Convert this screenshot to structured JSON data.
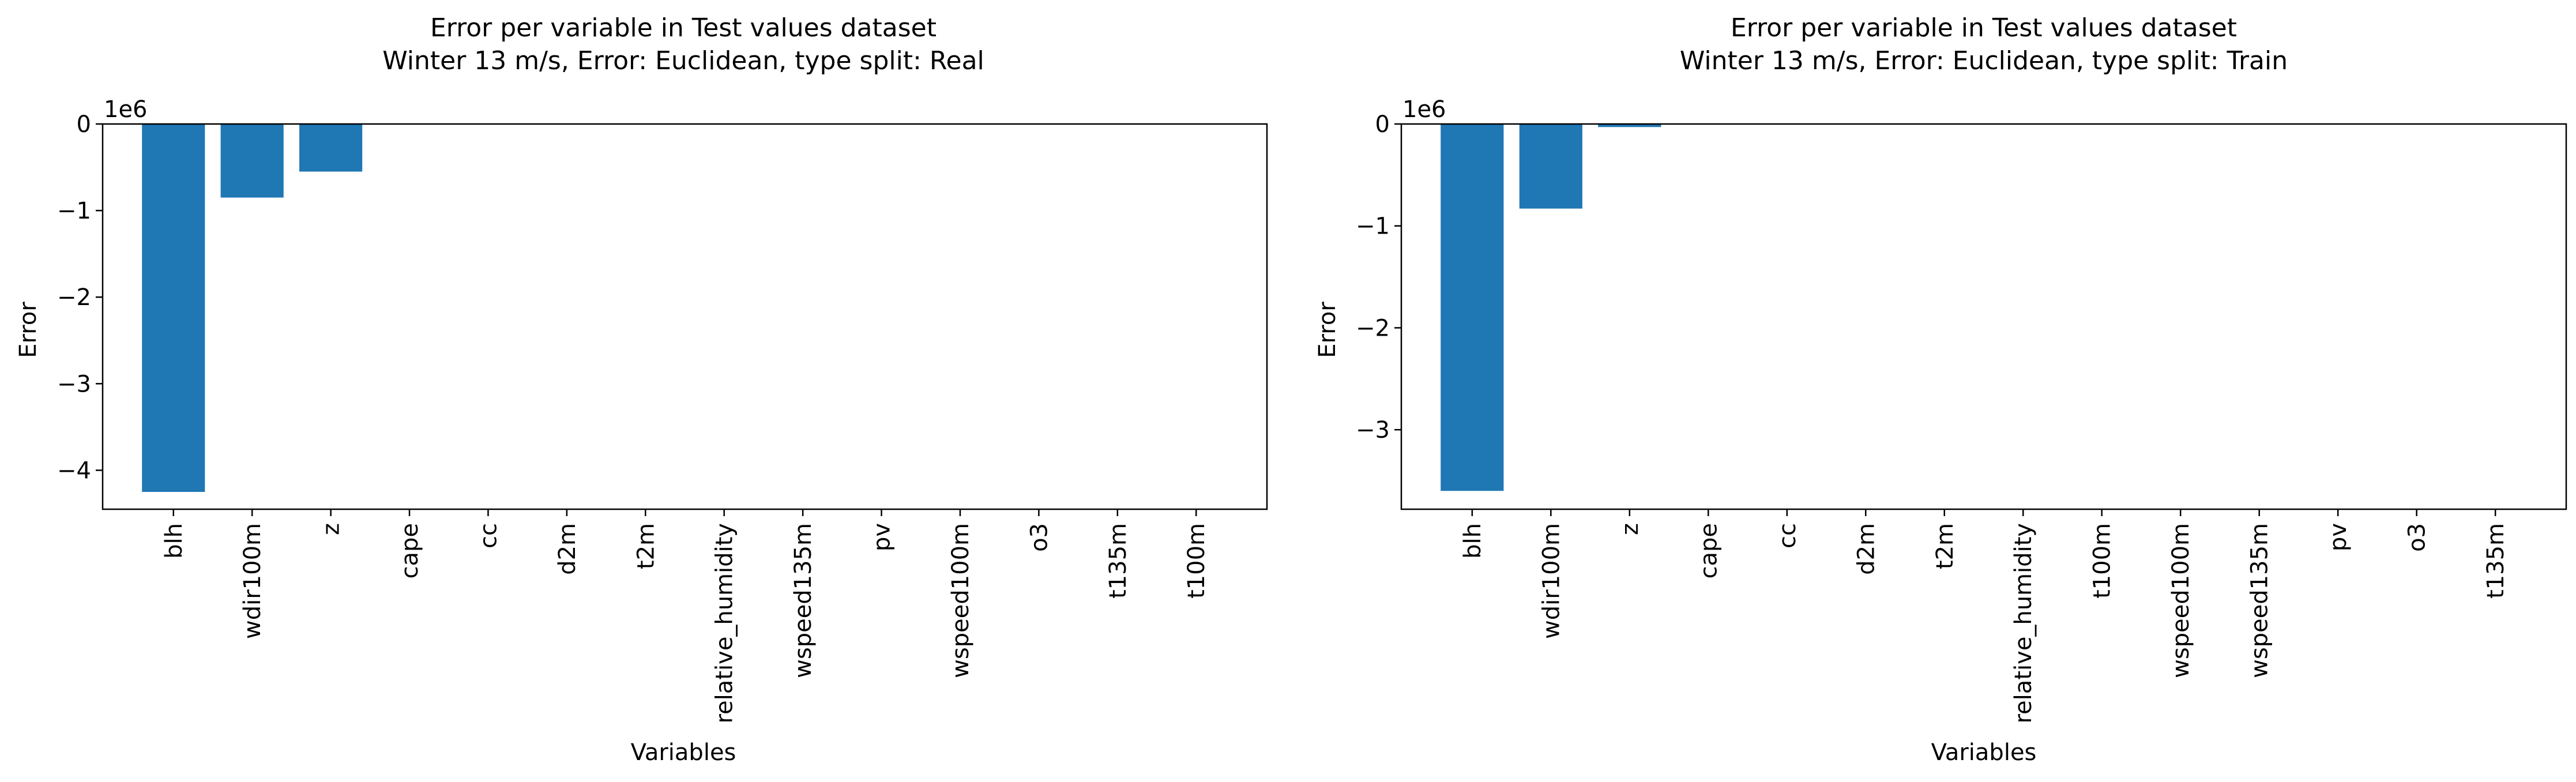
{
  "chart_data": [
    {
      "type": "bar",
      "title": "Error per variable in Test values dataset",
      "subtitle": "Winter 13 m/s, Error: Euclidean, type split: Real",
      "xlabel": "Variables",
      "ylabel": "Error",
      "y_offset_label": "1e6",
      "ylim": [
        -4.45,
        0
      ],
      "yticks": [
        0,
        -1,
        -2,
        -3,
        -4
      ],
      "ytick_labels": [
        "0",
        "−1",
        "−2",
        "−3",
        "−4"
      ],
      "bar_color": "#1f77b4",
      "grid": false,
      "categories": [
        "blh",
        "wdir100m",
        "z",
        "cape",
        "cc",
        "d2m",
        "t2m",
        "relative_humidity",
        "wspeed135m",
        "pv",
        "wspeed100m",
        "o3",
        "t135m",
        "t100m"
      ],
      "values": [
        -4.25,
        -0.85,
        -0.55,
        0,
        0,
        0,
        0,
        0,
        0,
        0,
        0,
        0,
        0,
        0
      ]
    },
    {
      "type": "bar",
      "title": "Error per variable in Test values dataset",
      "subtitle": "Winter 13 m/s, Error: Euclidean, type split: Train",
      "xlabel": "Variables",
      "ylabel": "Error",
      "y_offset_label": "1e6",
      "ylim": [
        -3.78,
        0
      ],
      "yticks": [
        0,
        -1,
        -2,
        -3
      ],
      "ytick_labels": [
        "0",
        "−1",
        "−2",
        "−3"
      ],
      "bar_color": "#1f77b4",
      "grid": false,
      "categories": [
        "blh",
        "wdir100m",
        "z",
        "cape",
        "cc",
        "d2m",
        "t2m",
        "relative_humidity",
        "t100m",
        "wspeed100m",
        "wspeed135m",
        "pv",
        "o3",
        "t135m"
      ],
      "values": [
        -3.6,
        -0.83,
        -0.03,
        0,
        0,
        0,
        0,
        0,
        0,
        0,
        0,
        0,
        0,
        0
      ]
    }
  ]
}
